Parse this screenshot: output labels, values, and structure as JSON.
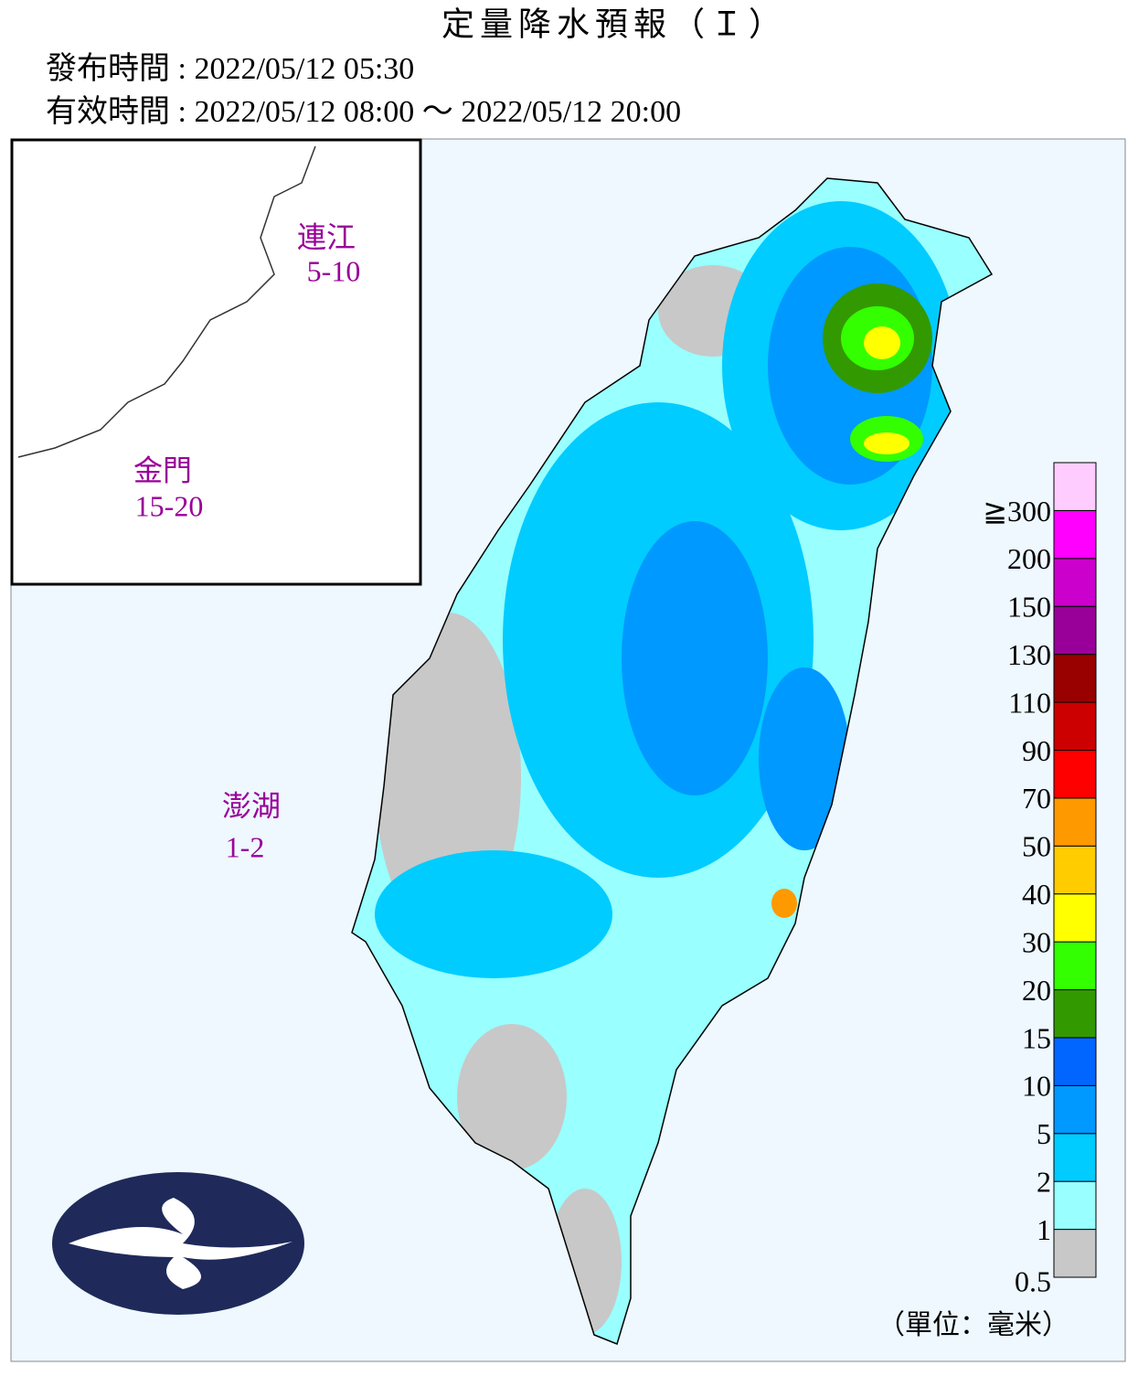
{
  "header": {
    "title": "定量降水預報（Ｉ）",
    "issued": "發布時間 : 2022/05/12 05:30",
    "valid": "有效時間 : 2022/05/12 08:00 ～ 2022/05/12 20:00"
  },
  "islands": [
    {
      "name": "連江",
      "range": "5-10"
    },
    {
      "name": "金門",
      "range": "15-20"
    },
    {
      "name": "澎湖",
      "range": "1-2"
    }
  ],
  "legend": {
    "levels": [
      {
        "label": "0.5",
        "color": "#c8c8c8"
      },
      {
        "label": "1",
        "color": "#99ffff"
      },
      {
        "label": "2",
        "color": "#00ccff"
      },
      {
        "label": "5",
        "color": "#0099ff"
      },
      {
        "label": "10",
        "color": "#0066ff"
      },
      {
        "label": "15",
        "color": "#339900"
      },
      {
        "label": "20",
        "color": "#33ff00"
      },
      {
        "label": "30",
        "color": "#ffff00"
      },
      {
        "label": "40",
        "color": "#ffcc00"
      },
      {
        "label": "50",
        "color": "#ff9900"
      },
      {
        "label": "70",
        "color": "#ff0000"
      },
      {
        "label": "90",
        "color": "#cc0000"
      },
      {
        "label": "110",
        "color": "#990000"
      },
      {
        "label": "130",
        "color": "#990099"
      },
      {
        "label": "150",
        "color": "#cc00cc"
      },
      {
        "label": "200",
        "color": "#ff00ff"
      },
      {
        "label": "≧300",
        "color": "#ffccff"
      }
    ],
    "unit": "（單位：毫米）"
  }
}
